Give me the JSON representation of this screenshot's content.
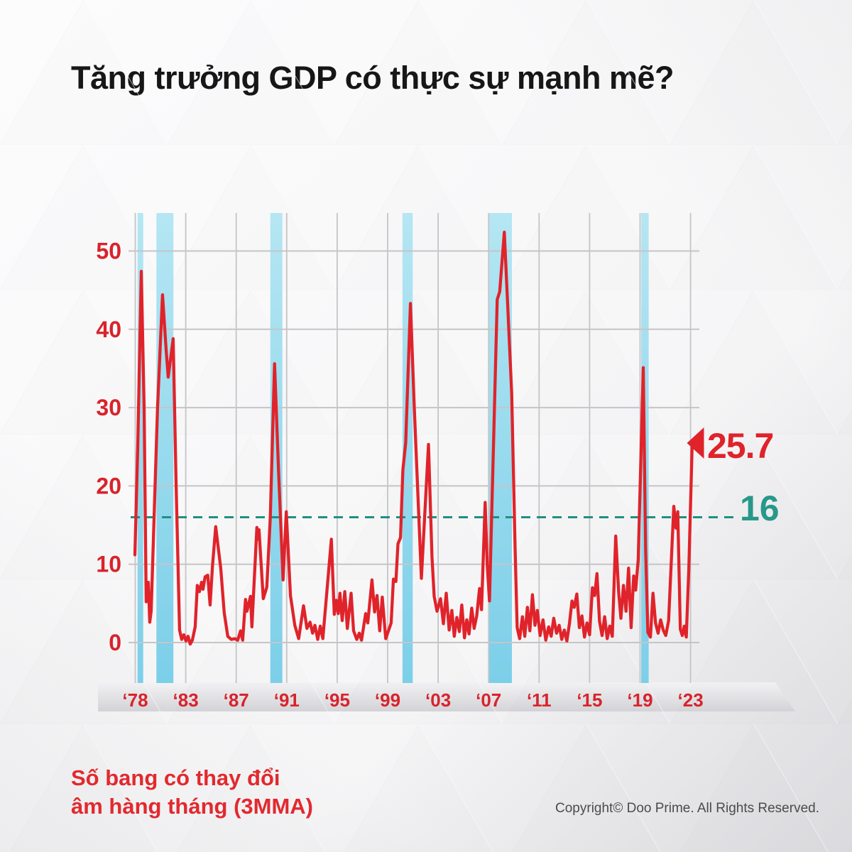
{
  "title": "Tăng trưởng GDP có thực sự mạnh mẽ?",
  "footnote": {
    "line1": "Số bang có thay đổi",
    "line2": "âm hàng tháng (3MMA)"
  },
  "copyright": "Copyright© Doo Prime. All Rights Reserved.",
  "colors": {
    "accent_red": "#e0232a",
    "label_red": "#d8232b",
    "teal": "#27988a",
    "teal_line": "#1f9080",
    "grid": "#c5c5c8",
    "band_top": "#b5e6f3",
    "band_bottom": "#7ccfe9",
    "title_black": "#161616"
  },
  "chart_data": {
    "type": "line",
    "title": "Số bang có thay đổi âm hàng tháng (3MMA)",
    "xlabel": "",
    "ylabel": "",
    "ylim": [
      0,
      55
    ],
    "grid": true,
    "y_ticks": [
      0,
      10,
      20,
      30,
      40,
      50
    ],
    "x_tick_labels": [
      "‘78",
      "‘83",
      "‘87",
      "‘91",
      "‘95",
      "‘99",
      "‘03",
      "‘07",
      "‘11",
      "‘15",
      "‘19",
      "‘23"
    ],
    "reference_line": {
      "value": 16,
      "label": "16",
      "style": "dashed",
      "color": "#1f9080"
    },
    "latest_label": {
      "text": "25.7",
      "value": 25.7,
      "color": "#e0232a"
    },
    "recession_bands": [
      [
        0.0121,
        0.0221
      ],
      [
        0.0453,
        0.0752
      ],
      [
        0.2456,
        0.2668
      ],
      [
        0.478,
        0.496
      ],
      [
        0.6297,
        0.6704
      ],
      [
        0.8978,
        0.9109
      ]
    ],
    "notable_peaks": {
      "1980": 47.4,
      "1982": 44.4,
      "1991": 35.6,
      "2001": 43.3,
      "2008-09": 52.4,
      "2020": 35.1,
      "latest": 25.7,
      "threshold": 16
    },
    "series": [
      {
        "name": "Số bang có thay đổi âm hàng tháng (3MMA)",
        "color": "#e0232a",
        "points": [
          [
            0.0075,
            11.2
          ],
          [
            0.0125,
            25.0
          ],
          [
            0.0187,
            47.4
          ],
          [
            0.0237,
            30.0
          ],
          [
            0.0274,
            5.2
          ],
          [
            0.0311,
            7.7
          ],
          [
            0.0336,
            2.6
          ],
          [
            0.0361,
            4.0
          ],
          [
            0.043,
            20.0
          ],
          [
            0.0473,
            30.0
          ],
          [
            0.056,
            44.4
          ],
          [
            0.0623,
            37.5
          ],
          [
            0.0661,
            33.9
          ],
          [
            0.0748,
            38.8
          ],
          [
            0.08,
            20.0
          ],
          [
            0.086,
            1.6
          ],
          [
            0.0898,
            0.4
          ],
          [
            0.0935,
            1.0
          ],
          [
            0.0973,
            0.2
          ],
          [
            0.101,
            0.8
          ],
          [
            0.1048,
            -0.2
          ],
          [
            0.1085,
            0.3
          ],
          [
            0.1135,
            2.0
          ],
          [
            0.1172,
            7.3
          ],
          [
            0.121,
            6.5
          ],
          [
            0.1247,
            7.7
          ],
          [
            0.1272,
            6.8
          ],
          [
            0.131,
            8.4
          ],
          [
            0.1356,
            8.6
          ],
          [
            0.1397,
            4.8
          ],
          [
            0.144,
            9.8
          ],
          [
            0.1496,
            14.8
          ],
          [
            0.1584,
            9.5
          ],
          [
            0.1646,
            3.8
          ],
          [
            0.1708,
            0.8
          ],
          [
            0.177,
            0.4
          ],
          [
            0.1833,
            0.5
          ],
          [
            0.1883,
            0.3
          ],
          [
            0.1933,
            1.5
          ],
          [
            0.197,
            0.3
          ],
          [
            0.202,
            5.5
          ],
          [
            0.2045,
            4.0
          ],
          [
            0.2107,
            5.9
          ],
          [
            0.2132,
            2.0
          ],
          [
            0.222,
            14.7
          ],
          [
            0.2245,
            13.2
          ],
          [
            0.2257,
            14.4
          ],
          [
            0.2332,
            5.6
          ],
          [
            0.2395,
            7.1
          ],
          [
            0.2456,
            16.0
          ],
          [
            0.2531,
            35.6
          ],
          [
            0.26,
            22.0
          ],
          [
            0.268,
            8.0
          ],
          [
            0.2737,
            16.7
          ],
          [
            0.281,
            6.0
          ],
          [
            0.2886,
            2.2
          ],
          [
            0.2955,
            0.5
          ],
          [
            0.304,
            4.7
          ],
          [
            0.31,
            1.8
          ],
          [
            0.3155,
            2.6
          ],
          [
            0.32,
            1.2
          ],
          [
            0.324,
            2.2
          ],
          [
            0.329,
            0.4
          ],
          [
            0.3335,
            2.1
          ],
          [
            0.338,
            0.5
          ],
          [
            0.3529,
            13.2
          ],
          [
            0.358,
            3.6
          ],
          [
            0.3616,
            5.4
          ],
          [
            0.365,
            3.7
          ],
          [
            0.368,
            6.3
          ],
          [
            0.372,
            2.8
          ],
          [
            0.3765,
            6.5
          ],
          [
            0.381,
            1.8
          ],
          [
            0.3877,
            6.3
          ],
          [
            0.392,
            1.5
          ],
          [
            0.3976,
            0.4
          ],
          [
            0.402,
            1.2
          ],
          [
            0.406,
            0.3
          ],
          [
            0.4132,
            3.7
          ],
          [
            0.417,
            2.5
          ],
          [
            0.4243,
            8.0
          ],
          [
            0.429,
            3.9
          ],
          [
            0.4332,
            6.0
          ],
          [
            0.438,
            1.5
          ],
          [
            0.4424,
            5.8
          ],
          [
            0.4486,
            0.5
          ],
          [
            0.458,
            2.5
          ],
          [
            0.462,
            8.1
          ],
          [
            0.4664,
            7.8
          ],
          [
            0.47,
            12.6
          ],
          [
            0.4745,
            13.4
          ],
          [
            0.4787,
            22.0
          ],
          [
            0.4837,
            25.5
          ],
          [
            0.492,
            43.3
          ],
          [
            0.4987,
            30.0
          ],
          [
            0.5112,
            8.2
          ],
          [
            0.5237,
            25.3
          ],
          [
            0.5299,
            11.0
          ],
          [
            0.5337,
            5.9
          ],
          [
            0.5387,
            4.0
          ],
          [
            0.545,
            5.6
          ],
          [
            0.55,
            2.4
          ],
          [
            0.5549,
            6.3
          ],
          [
            0.56,
            1.6
          ],
          [
            0.5648,
            4.1
          ],
          [
            0.569,
            0.8
          ],
          [
            0.5735,
            3.2
          ],
          [
            0.578,
            1.4
          ],
          [
            0.5823,
            4.8
          ],
          [
            0.587,
            0.6
          ],
          [
            0.591,
            2.9
          ],
          [
            0.595,
            1.1
          ],
          [
            0.5997,
            4.4
          ],
          [
            0.604,
            1.8
          ],
          [
            0.6085,
            3.4
          ],
          [
            0.6135,
            6.9
          ],
          [
            0.617,
            4.2
          ],
          [
            0.6234,
            17.9
          ],
          [
            0.627,
            10.0
          ],
          [
            0.6309,
            5.3
          ],
          [
            0.638,
            25.0
          ],
          [
            0.6446,
            43.8
          ],
          [
            0.649,
            44.8
          ],
          [
            0.6571,
            52.4
          ],
          [
            0.663,
            43.0
          ],
          [
            0.67,
            31.8
          ],
          [
            0.676,
            12.0
          ],
          [
            0.6796,
            1.9
          ],
          [
            0.684,
            0.5
          ],
          [
            0.6889,
            3.3
          ],
          [
            0.693,
            0.8
          ],
          [
            0.6976,
            4.5
          ],
          [
            0.702,
            1.5
          ],
          [
            0.7065,
            6.1
          ],
          [
            0.711,
            2.2
          ],
          [
            0.7151,
            4.1
          ],
          [
            0.72,
            0.9
          ],
          [
            0.7251,
            2.9
          ],
          [
            0.73,
            0.3
          ],
          [
            0.7351,
            2.0
          ],
          [
            0.7395,
            0.8
          ],
          [
            0.744,
            3.1
          ],
          [
            0.749,
            1.2
          ],
          [
            0.7535,
            2.2
          ],
          [
            0.758,
            0.4
          ],
          [
            0.7625,
            1.6
          ],
          [
            0.767,
            0.2
          ],
          [
            0.7715,
            2.4
          ],
          [
            0.776,
            5.3
          ],
          [
            0.78,
            4.5
          ],
          [
            0.7845,
            6.2
          ],
          [
            0.789,
            1.9
          ],
          [
            0.7935,
            3.4
          ],
          [
            0.798,
            0.7
          ],
          [
            0.8025,
            2.5
          ],
          [
            0.807,
            1.0
          ],
          [
            0.812,
            7.0
          ],
          [
            0.816,
            6.0
          ],
          [
            0.82,
            8.8
          ],
          [
            0.8245,
            2.7
          ],
          [
            0.829,
            0.9
          ],
          [
            0.8335,
            3.3
          ],
          [
            0.838,
            0.5
          ],
          [
            0.8425,
            2.1
          ],
          [
            0.847,
            0.8
          ],
          [
            0.8529,
            13.6
          ],
          [
            0.858,
            6.5
          ],
          [
            0.862,
            3.1
          ],
          [
            0.8665,
            7.3
          ],
          [
            0.871,
            4.0
          ],
          [
            0.8755,
            9.5
          ],
          [
            0.88,
            1.9
          ],
          [
            0.8845,
            8.5
          ],
          [
            0.888,
            6.7
          ],
          [
            0.8925,
            10.6
          ],
          [
            0.9014,
            35.1
          ],
          [
            0.9055,
            12.0
          ],
          [
            0.9095,
            1.3
          ],
          [
            0.914,
            0.7
          ],
          [
            0.9185,
            6.3
          ],
          [
            0.923,
            2.5
          ],
          [
            0.9275,
            1.2
          ],
          [
            0.932,
            2.9
          ],
          [
            0.9365,
            1.6
          ],
          [
            0.941,
            0.9
          ],
          [
            0.946,
            2.8
          ],
          [
            0.955,
            17.4
          ],
          [
            0.959,
            14.6
          ],
          [
            0.962,
            16.7
          ],
          [
            0.9665,
            1.7
          ],
          [
            0.97,
            0.9
          ],
          [
            0.9735,
            2.1
          ],
          [
            0.977,
            0.7
          ],
          [
            0.9815,
            9.5
          ],
          [
            0.9875,
            25.7
          ]
        ]
      }
    ]
  }
}
